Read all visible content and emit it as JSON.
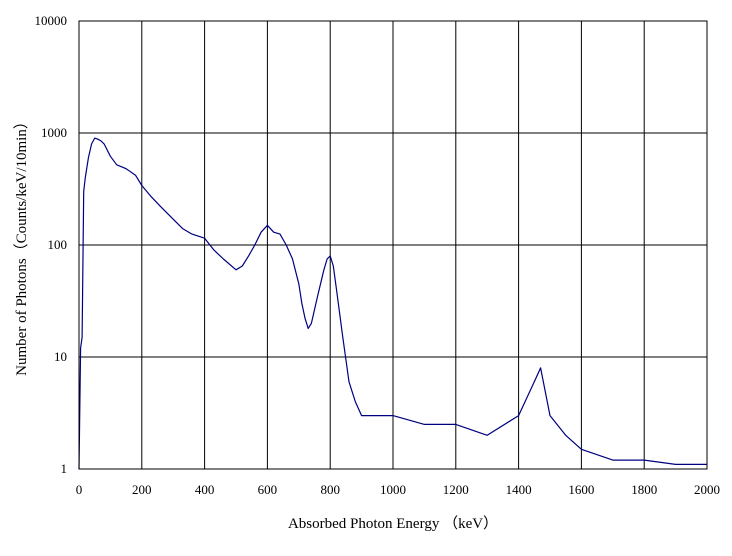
{
  "chart_data": {
    "type": "line",
    "title": "",
    "xlabel": "Absorbed Photon Energy （keV）",
    "ylabel": "Number of Photons（Counts/keV/10min）",
    "xlim": [
      0,
      2000
    ],
    "ylim": [
      1,
      10000
    ],
    "y_scale": "log",
    "grid": true,
    "legend": "none",
    "x_ticks": [
      "0",
      "200",
      "400",
      "600",
      "800",
      "1000",
      "1200",
      "1400",
      "1600",
      "1800",
      "2000"
    ],
    "y_ticks": [
      "1",
      "10",
      "100",
      "1000",
      "10000"
    ],
    "series": [
      {
        "color": "#000080",
        "x": [
          0,
          5,
          10,
          15,
          20,
          30,
          40,
          50,
          60,
          70,
          80,
          100,
          120,
          150,
          180,
          200,
          230,
          260,
          300,
          330,
          360,
          400,
          430,
          460,
          500,
          520,
          540,
          560,
          580,
          600,
          620,
          640,
          660,
          680,
          700,
          710,
          720,
          730,
          740,
          760,
          780,
          790,
          800,
          810,
          820,
          840,
          860,
          880,
          900,
          950,
          1000,
          1100,
          1200,
          1300,
          1400,
          1450,
          1470,
          1500,
          1550,
          1600,
          1700,
          1800,
          1900,
          2000
        ],
        "y": [
          1,
          12,
          15,
          300,
          400,
          600,
          800,
          900,
          880,
          850,
          800,
          620,
          520,
          480,
          420,
          340,
          270,
          220,
          170,
          140,
          125,
          115,
          90,
          75,
          60,
          65,
          80,
          100,
          130,
          150,
          130,
          125,
          100,
          75,
          45,
          30,
          22,
          18,
          20,
          35,
          60,
          75,
          80,
          65,
          40,
          15,
          6,
          4,
          3,
          3,
          3,
          2.5,
          2.5,
          2,
          3,
          6,
          8,
          3,
          2,
          1.5,
          1.2,
          1.2,
          1.1,
          1.1
        ]
      }
    ]
  }
}
